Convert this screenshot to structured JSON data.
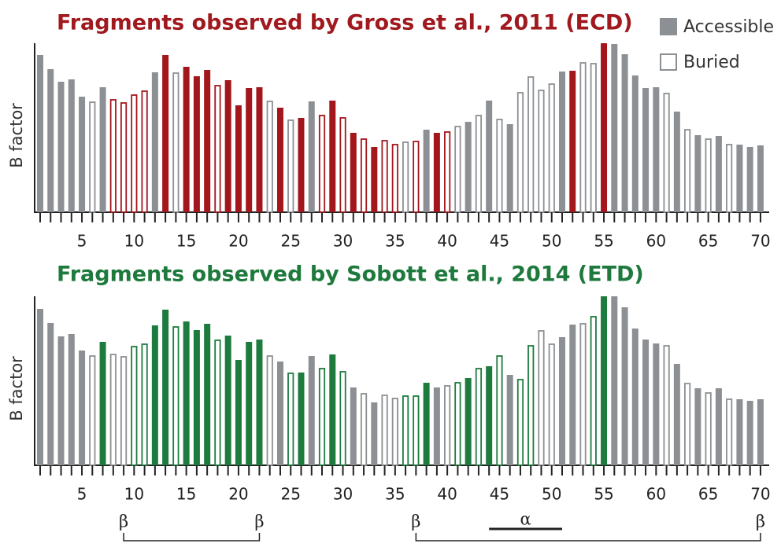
{
  "chart_data": [
    {
      "type": "bar",
      "title": "Fragments observed by Gross et al., 2011 (ECD)",
      "title_color": "#a0191e",
      "ylabel": "B factor",
      "categories": [
        null,
        null,
        null,
        null,
        5,
        null,
        null,
        null,
        null,
        10,
        null,
        null,
        null,
        null,
        15,
        null,
        null,
        null,
        null,
        20,
        null,
        null,
        null,
        null,
        25,
        null,
        null,
        null,
        null,
        30,
        null,
        null,
        null,
        null,
        35,
        null,
        null,
        null,
        null,
        40,
        null,
        null,
        null,
        null,
        45,
        null,
        null,
        null,
        null,
        50,
        null,
        null,
        null,
        null,
        55,
        null,
        null,
        null,
        null,
        60,
        null,
        null,
        null,
        null,
        65,
        null,
        null,
        null,
        null,
        70
      ],
      "values": [
        200,
        182,
        166,
        169,
        147,
        141,
        159,
        144,
        140,
        150,
        155,
        178,
        200,
        178,
        185,
        173,
        181,
        162,
        168,
        136,
        158,
        159,
        142,
        133,
        118,
        120,
        141,
        124,
        142,
        121,
        101,
        94,
        83,
        92,
        87,
        90,
        91,
        105,
        101,
        103,
        110,
        115,
        124,
        142,
        119,
        112,
        153,
        173,
        156,
        164,
        179,
        180,
        191,
        190,
        215,
        214,
        201,
        174,
        158,
        159,
        152,
        128,
        106,
        98,
        94,
        97,
        87,
        86,
        83,
        85
      ],
      "observed": [
        false,
        false,
        false,
        false,
        false,
        false,
        false,
        true,
        true,
        true,
        true,
        false,
        true,
        false,
        true,
        true,
        true,
        true,
        true,
        true,
        true,
        true,
        false,
        true,
        false,
        true,
        false,
        true,
        true,
        true,
        true,
        true,
        true,
        true,
        true,
        false,
        true,
        false,
        true,
        true,
        false,
        false,
        false,
        false,
        false,
        false,
        false,
        false,
        false,
        false,
        false,
        true,
        false,
        false,
        true,
        false,
        false,
        false,
        false,
        false,
        false,
        false,
        false,
        false,
        false,
        false,
        false,
        false,
        false,
        false
      ],
      "buried": [
        false,
        false,
        false,
        false,
        false,
        true,
        false,
        true,
        true,
        true,
        true,
        false,
        false,
        true,
        false,
        false,
        false,
        true,
        false,
        false,
        false,
        false,
        true,
        false,
        true,
        false,
        false,
        true,
        false,
        true,
        false,
        true,
        false,
        true,
        true,
        true,
        true,
        false,
        false,
        true,
        true,
        false,
        true,
        false,
        true,
        false,
        true,
        true,
        true,
        true,
        false,
        false,
        true,
        true,
        false,
        false,
        false,
        false,
        false,
        false,
        true,
        false,
        true,
        false,
        true,
        false,
        true,
        false,
        false,
        false
      ],
      "color": "#8c8f93",
      "observed_color": "#a3171c",
      "ylim": [
        0,
        215
      ]
    },
    {
      "type": "bar",
      "title": "Fragments observed by Sobott et al., 2014 (ETD)",
      "title_color": "#1e7a3c",
      "ylabel": "B factor",
      "categories": [
        null,
        null,
        null,
        null,
        5,
        null,
        null,
        null,
        null,
        10,
        null,
        null,
        null,
        null,
        15,
        null,
        null,
        null,
        null,
        20,
        null,
        null,
        null,
        null,
        25,
        null,
        null,
        null,
        null,
        30,
        null,
        null,
        null,
        null,
        35,
        null,
        null,
        null,
        null,
        40,
        null,
        null,
        null,
        null,
        45,
        null,
        null,
        null,
        null,
        50,
        null,
        null,
        null,
        null,
        55,
        null,
        null,
        null,
        null,
        60,
        null,
        null,
        null,
        null,
        65,
        null,
        null,
        null,
        null,
        70
      ],
      "values": [
        199,
        181,
        164,
        167,
        146,
        140,
        157,
        142,
        139,
        152,
        155,
        178,
        198,
        177,
        183,
        172,
        180,
        160,
        165,
        134,
        157,
        160,
        140,
        132,
        118,
        118,
        139,
        124,
        141,
        120,
        99,
        92,
        80,
        90,
        86,
        89,
        89,
        105,
        99,
        102,
        106,
        111,
        124,
        126,
        140,
        115,
        110,
        153,
        172,
        155,
        163,
        179,
        181,
        190,
        215,
        215,
        201,
        174,
        160,
        155,
        153,
        129,
        105,
        98,
        93,
        98,
        85,
        84,
        82,
        84
      ],
      "observed": [
        false,
        false,
        false,
        false,
        false,
        false,
        true,
        false,
        false,
        true,
        true,
        true,
        true,
        true,
        true,
        true,
        true,
        true,
        true,
        true,
        true,
        true,
        false,
        false,
        true,
        true,
        false,
        true,
        true,
        true,
        false,
        false,
        false,
        false,
        false,
        true,
        true,
        true,
        false,
        false,
        true,
        true,
        true,
        true,
        true,
        false,
        true,
        true,
        false,
        false,
        false,
        false,
        false,
        true,
        true,
        false,
        false,
        false,
        false,
        false,
        false,
        false,
        false,
        false,
        false,
        false,
        false,
        false,
        false,
        false
      ],
      "buried": [
        false,
        false,
        false,
        false,
        false,
        true,
        false,
        true,
        true,
        true,
        true,
        false,
        false,
        true,
        false,
        false,
        false,
        true,
        false,
        false,
        false,
        false,
        true,
        false,
        true,
        false,
        false,
        true,
        false,
        true,
        false,
        true,
        false,
        true,
        true,
        true,
        true,
        false,
        false,
        true,
        true,
        false,
        true,
        false,
        true,
        false,
        true,
        true,
        true,
        true,
        false,
        false,
        true,
        true,
        false,
        false,
        false,
        false,
        false,
        false,
        true,
        false,
        true,
        false,
        true,
        false,
        true,
        false,
        false,
        false
      ],
      "color": "#8c8f93",
      "observed_color": "#1e7b3e",
      "ylim": [
        0,
        215
      ]
    }
  ],
  "legend": [
    "Accessible",
    "Buried"
  ],
  "secondary_structure": [
    {
      "kind": "bracket",
      "start": 9,
      "end": 22,
      "start_label": "β",
      "end_label": "β"
    },
    {
      "kind": "bracket",
      "start": 37,
      "end": 70,
      "start_label": "β",
      "end_label": "β"
    },
    {
      "kind": "line",
      "start": 44,
      "end": 51,
      "label": "α"
    }
  ]
}
